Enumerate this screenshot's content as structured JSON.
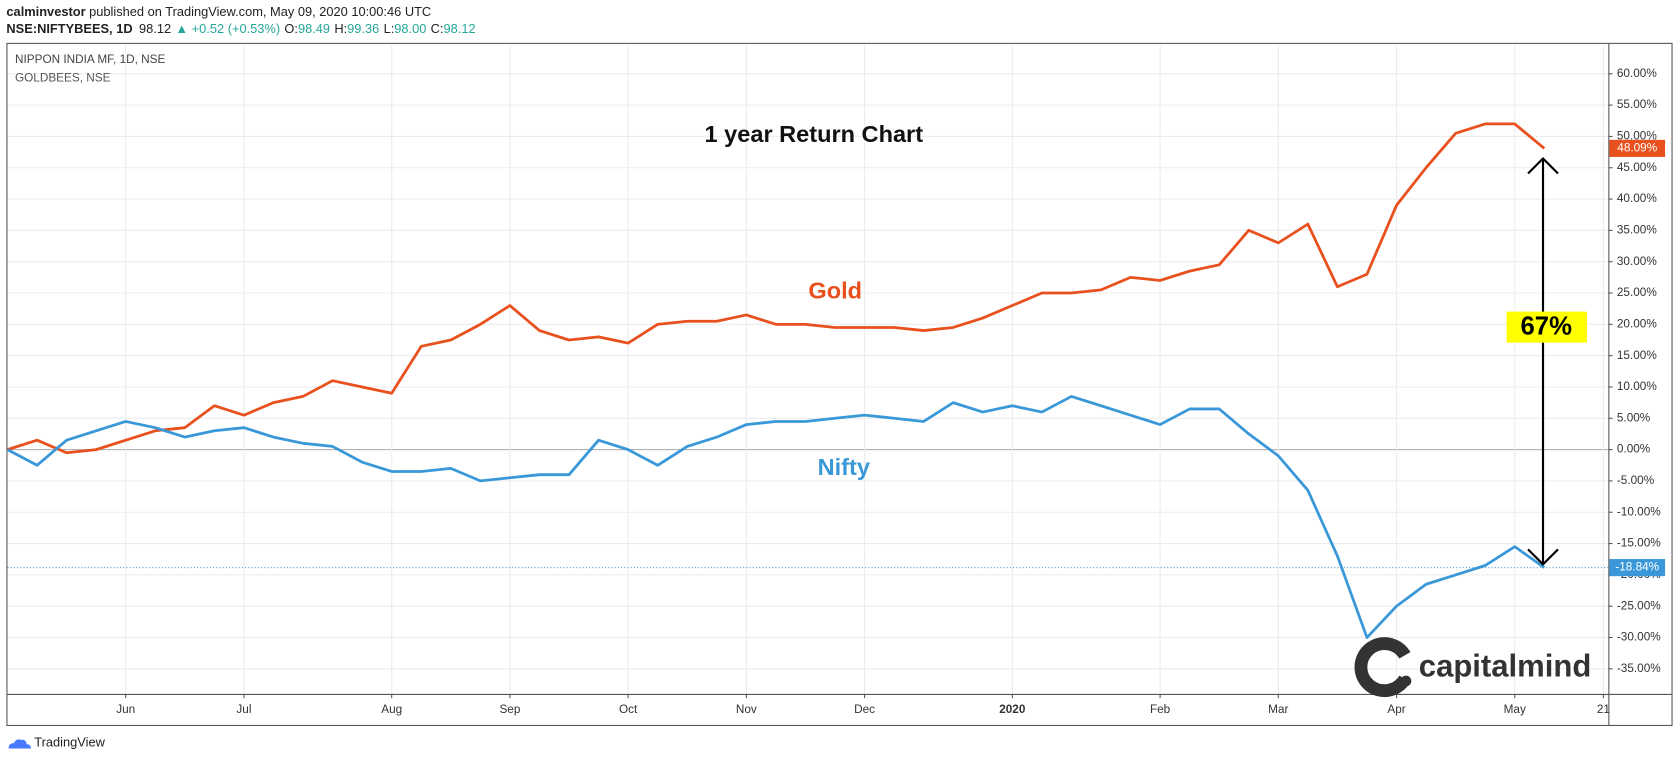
{
  "header": {
    "author": "calminvestor",
    "published": " published on TradingView.com, May 09, 2020 10:00:46 UTC",
    "symbol": "NSE:NIFTYBEES, 1D",
    "last": "98.12",
    "change": "▲ +0.52 (+0.53%)",
    "ohlc": [
      {
        "label": "O:",
        "value": "98.49"
      },
      {
        "label": "H:",
        "value": "99.36"
      },
      {
        "label": "L:",
        "value": "98.00"
      },
      {
        "label": "C:",
        "value": "98.12"
      }
    ]
  },
  "footer": {
    "brand": "TradingView"
  },
  "chart_data": {
    "type": "line",
    "title": "1 year Return Chart",
    "legend": [
      "NIPPON INDIA MF, 1D, NSE",
      "GOLDBEES, NSE"
    ],
    "categories": [
      null,
      null,
      null,
      null,
      "Jun",
      null,
      null,
      null,
      "Jul",
      null,
      null,
      null,
      null,
      "Aug",
      null,
      null,
      null,
      "Sep",
      null,
      null,
      null,
      "Oct",
      null,
      null,
      null,
      "Nov",
      null,
      null,
      null,
      "Dec",
      null,
      null,
      null,
      null,
      "2020",
      null,
      null,
      null,
      null,
      "Feb",
      null,
      null,
      null,
      "Mar",
      null,
      null,
      null,
      "Apr",
      null,
      null,
      null,
      "May",
      null,
      null,
      "21"
    ],
    "series": [
      {
        "name": "Gold",
        "color": "#e8501e",
        "last_label": "48.09%",
        "values": [
          0,
          1.5,
          -0.5,
          0,
          1.5,
          3,
          3.5,
          7,
          5.5,
          7.5,
          8.5,
          11,
          10,
          9,
          16.5,
          17.5,
          20,
          23,
          19,
          17.5,
          18,
          17,
          20,
          20.5,
          20.5,
          21.5,
          20,
          20,
          19.5,
          19.5,
          19.5,
          19,
          19.5,
          21,
          23,
          25,
          25,
          25.5,
          27.5,
          27,
          28.5,
          29.5,
          35,
          33,
          36,
          26,
          28,
          39,
          45,
          50.5,
          52,
          52,
          48.09,
          null,
          null
        ]
      },
      {
        "name": "Nifty",
        "color": "#3a98d9",
        "last_label": "-18.84%",
        "values": [
          0,
          -2.5,
          1.5,
          3,
          4.5,
          3.5,
          2,
          3,
          3.5,
          2,
          1,
          0.5,
          -2,
          -3.5,
          -3.5,
          -3,
          -5,
          -4.5,
          -4,
          -4,
          1.5,
          0,
          -2.5,
          0.5,
          2,
          4,
          4.5,
          4.5,
          5,
          5.5,
          5,
          4.5,
          7.5,
          6,
          7,
          6,
          8.5,
          7,
          5.5,
          4,
          6.5,
          6.5,
          2.5,
          -1,
          -6.5,
          -17,
          -30,
          -25,
          -21.5,
          -20,
          -18.5,
          -15.5,
          -18.84,
          null,
          null
        ]
      }
    ],
    "ylim": [
      -39,
      64.6
    ],
    "yticks": [
      {
        "value": -35,
        "label": "-35.00%"
      },
      {
        "value": -30,
        "label": "-30.00%"
      },
      {
        "value": -25,
        "label": "-25.00%"
      },
      {
        "value": -20,
        "label": "-20.00%"
      },
      {
        "value": -15,
        "label": "-15.00%"
      },
      {
        "value": -10,
        "label": "-10.00%"
      },
      {
        "value": -5,
        "label": "-5.00%"
      },
      {
        "value": 0,
        "label": "0.00%"
      },
      {
        "value": 5,
        "label": "5.00%"
      },
      {
        "value": 10,
        "label": "10.00%"
      },
      {
        "value": 15,
        "label": "15.00%"
      },
      {
        "value": 20,
        "label": "20.00%"
      },
      {
        "value": 25,
        "label": "25.00%"
      },
      {
        "value": 30,
        "label": "30.00%"
      },
      {
        "value": 35,
        "label": "35.00%"
      },
      {
        "value": 40,
        "label": "40.00%"
      },
      {
        "value": 45,
        "label": "45.00%"
      },
      {
        "value": 50,
        "label": "50.00%"
      },
      {
        "value": 55,
        "label": "55.00%"
      },
      {
        "value": 60,
        "label": "60.00%"
      }
    ],
    "grid": true,
    "annotation": "67%",
    "watermark": "capitalmind"
  }
}
